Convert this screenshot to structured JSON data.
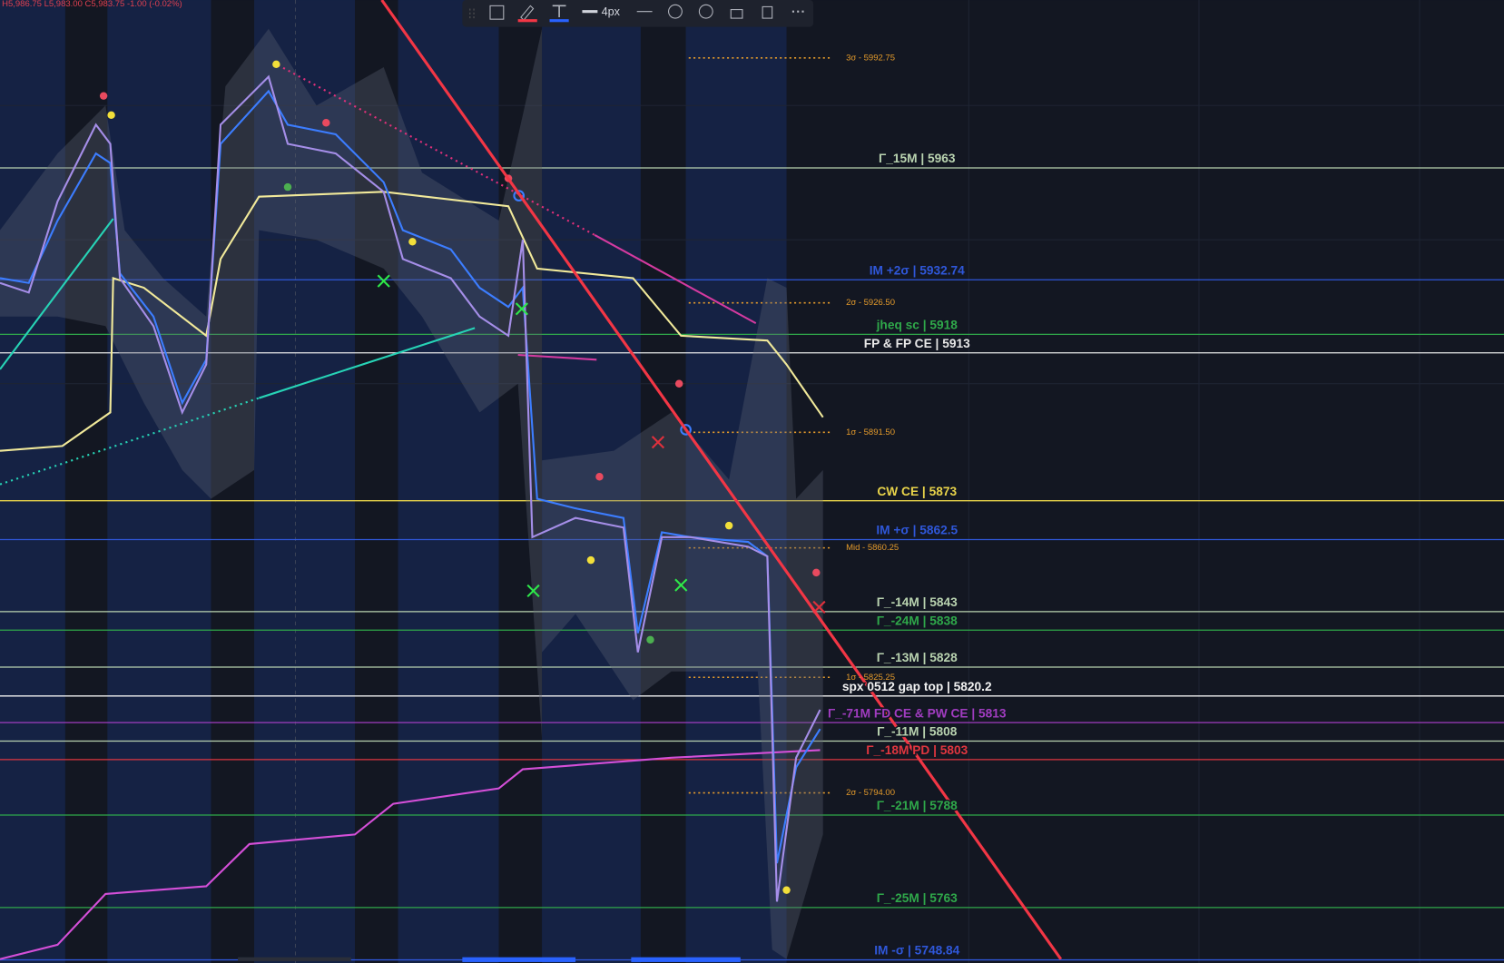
{
  "header": {
    "ohlc": "H5,986.75 L5,983.00 C5,983.75 -1.00 (-0.02%)"
  },
  "toolbar": {
    "width_label": "4px"
  },
  "ylim": [
    5748,
    6008.4
  ],
  "levels": [
    {
      "label": "3σ - 5992.75",
      "value": 5992.75,
      "color": "#e39a2b",
      "dotted": true
    },
    {
      "label": "Γ_15M | 5963",
      "value": 5963,
      "color": "#b9d3b0",
      "dotted": false
    },
    {
      "label": "IM +2σ | 5932.74",
      "value": 5932.74,
      "color": "#2f57d9",
      "dotted": false
    },
    {
      "label": "2σ - 5926.50",
      "value": 5926.5,
      "color": "#e39a2b",
      "dotted": true
    },
    {
      "label": "jheq sc | 5918",
      "value": 5918,
      "color": "#2fa84a",
      "dotted": false
    },
    {
      "label": "FP & FP CE | 5913",
      "value": 5913,
      "color": "#e8e8e8",
      "dotted": false
    },
    {
      "label": "1σ - 5891.50",
      "value": 5891.5,
      "color": "#e39a2b",
      "dotted": true
    },
    {
      "label": "CW CE | 5873",
      "value": 5873,
      "color": "#e8d34a",
      "dotted": false
    },
    {
      "label": "IM +σ | 5862.5",
      "value": 5862.5,
      "color": "#2f57d9",
      "dotted": false
    },
    {
      "label": "Mid - 5860.25",
      "value": 5860.25,
      "color": "#e39a2b",
      "dotted": true
    },
    {
      "label": "Γ_-14M | 5843",
      "value": 5843,
      "color": "#b9d3b0",
      "dotted": false
    },
    {
      "label": "Γ_-24M | 5838",
      "value": 5838,
      "color": "#2fa84a",
      "dotted": false
    },
    {
      "label": "Γ_-13M | 5828",
      "value": 5828,
      "color": "#b9d3b0",
      "dotted": false
    },
    {
      "label": "1σ - 5825.25",
      "value": 5825.25,
      "color": "#e39a2b",
      "dotted": true
    },
    {
      "label": "spx 0512 gap top | 5820.2",
      "value": 5820.2,
      "color": "#f2f2f2",
      "dotted": false
    },
    {
      "label": "Γ_-71M FD CE & PW CE | 5813",
      "value": 5813,
      "color": "#a03cc0",
      "dotted": false
    },
    {
      "label": "Γ_-11M | 5808",
      "value": 5808,
      "color": "#b9d3b0",
      "dotted": false
    },
    {
      "label": "Γ_-18M PD | 5803",
      "value": 5803,
      "color": "#e0363f",
      "dotted": false
    },
    {
      "label": "2σ - 5794.00",
      "value": 5794,
      "color": "#e39a2b",
      "dotted": true
    },
    {
      "label": "Γ_-21M | 5788",
      "value": 5788,
      "color": "#2fa84a",
      "dotted": false
    },
    {
      "label": "Γ_-25M | 5763",
      "value": 5763,
      "color": "#2fa84a",
      "dotted": false
    },
    {
      "label": "IM -σ | 5748.84",
      "value": 5748.84,
      "color": "#2f57d9",
      "dotted": false
    }
  ]
}
